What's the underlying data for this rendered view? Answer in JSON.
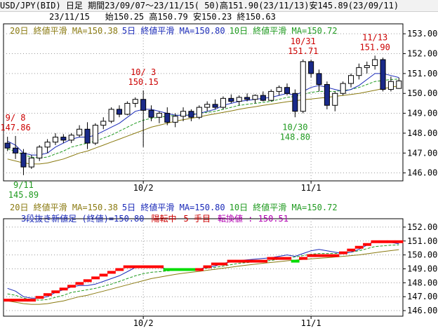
{
  "header": {
    "line1": "USD/JPY(BID) 日足 期間23/09/07～23/11/15( 50)高151.90(23/11/13)安145.89(23/09/11)",
    "date": "23/11/15",
    "ohlc": "始150.25 高150.79 安150.23 終150.63"
  },
  "panel1": {
    "legend": [
      {
        "label": "20日 終値平滑 MA=150.38",
        "color": "#8a7a10"
      },
      {
        "label": "5日 終値平滑 MA=150.80",
        "color": "#1a2ab8"
      },
      {
        "label": "10日 終値平滑 MA=150.72",
        "color": "#1f9a1f"
      }
    ],
    "annotations": [
      {
        "date_label": "9/ 8",
        "value": "147.86",
        "color": "#cc0000"
      },
      {
        "date_label": "9/11",
        "value": "145.89",
        "color": "#1f9a1f"
      },
      {
        "date_label": "10/ 3",
        "value": "150.15",
        "color": "#cc0000"
      },
      {
        "date_label": "10/31",
        "value": "151.71",
        "color": "#cc0000"
      },
      {
        "date_label": "10/30",
        "value": "148.80",
        "color": "#1f9a1f"
      },
      {
        "date_label": "11/13",
        "value": "151.90",
        "color": "#cc0000"
      }
    ]
  },
  "panel2": {
    "legend": [
      {
        "label": "20日 終値平滑 MA=150.38",
        "color": "#8a7a10"
      },
      {
        "label": "5日 終値平滑 MA=150.80",
        "color": "#1a2ab8"
      },
      {
        "label": "10日 終値平滑 MA=150.72",
        "color": "#1f9a1f"
      }
    ],
    "status": [
      {
        "text": "3段抜き新値足 (終値)=150.80",
        "color": "#1a2ab8"
      },
      {
        "text": "陽転中",
        "color": "#cc0000"
      },
      {
        "text": "5 手目",
        "color": "#cc0000"
      },
      {
        "text": "転換値 : 150.51",
        "color": "#b000b0"
      }
    ]
  },
  "colors": {
    "up": "#ff0000",
    "down": "#00dd00",
    "candle_down": "#1a2a8a",
    "ma20": "#8a7a10",
    "ma5": "#1a2ab8",
    "ma10": "#1f9a1f",
    "grid": "#9a9a9a"
  },
  "chart_data": [
    {
      "type": "candlestick",
      "title": "",
      "x_ticks": [
        "10/2",
        "11/1"
      ],
      "y_ticks": [
        "146.00",
        "147.00",
        "148.00",
        "149.00",
        "150.00",
        "151.00",
        "152.00",
        "153.00"
      ],
      "ylim": [
        145.6,
        153.5
      ],
      "grid": true,
      "candles": [
        [
          147.5,
          147.82,
          147.1,
          147.25
        ],
        [
          147.25,
          147.86,
          146.7,
          147.0
        ],
        [
          147.0,
          147.2,
          145.89,
          146.3
        ],
        [
          146.3,
          146.9,
          146.2,
          146.75
        ],
        [
          146.75,
          147.4,
          146.6,
          147.3
        ],
        [
          147.3,
          147.7,
          147.0,
          147.55
        ],
        [
          147.55,
          148.0,
          147.4,
          147.8
        ],
        [
          147.8,
          147.95,
          147.5,
          147.65
        ],
        [
          147.65,
          148.0,
          147.5,
          147.9
        ],
        [
          147.9,
          148.4,
          147.8,
          148.2
        ],
        [
          148.2,
          148.55,
          147.2,
          147.5
        ],
        [
          147.5,
          148.5,
          147.4,
          148.4
        ],
        [
          148.4,
          148.8,
          148.2,
          148.6
        ],
        [
          148.6,
          149.3,
          148.5,
          149.2
        ],
        [
          149.2,
          149.4,
          148.8,
          148.95
        ],
        [
          148.95,
          149.6,
          148.9,
          149.5
        ],
        [
          149.5,
          149.8,
          149.3,
          149.7
        ],
        [
          149.7,
          150.15,
          147.3,
          149.15
        ],
        [
          149.15,
          149.4,
          148.6,
          148.8
        ],
        [
          148.8,
          149.1,
          148.5,
          149.0
        ],
        [
          149.0,
          149.3,
          148.4,
          148.55
        ],
        [
          148.55,
          149.0,
          148.3,
          148.85
        ],
        [
          148.85,
          149.3,
          148.6,
          149.1
        ],
        [
          149.1,
          149.2,
          148.6,
          148.8
        ],
        [
          148.8,
          149.4,
          148.7,
          149.3
        ],
        [
          149.3,
          149.6,
          149.1,
          149.45
        ],
        [
          149.45,
          149.7,
          149.2,
          149.3
        ],
        [
          149.3,
          149.85,
          149.2,
          149.75
        ],
        [
          149.75,
          149.95,
          149.5,
          149.6
        ],
        [
          149.6,
          149.9,
          149.4,
          149.8
        ],
        [
          149.8,
          150.0,
          149.6,
          149.7
        ],
        [
          149.7,
          149.95,
          149.5,
          149.9
        ],
        [
          149.9,
          150.1,
          149.6,
          149.65
        ],
        [
          149.65,
          150.2,
          149.6,
          150.1
        ],
        [
          150.1,
          150.4,
          149.9,
          150.3
        ],
        [
          150.3,
          150.5,
          149.9,
          150.0
        ],
        [
          150.0,
          150.2,
          148.8,
          149.1
        ],
        [
          149.1,
          151.71,
          149.0,
          151.6
        ],
        [
          151.6,
          151.7,
          150.8,
          151.0
        ],
        [
          151.0,
          151.2,
          150.1,
          150.45
        ],
        [
          150.45,
          150.6,
          149.2,
          149.4
        ],
        [
          149.4,
          150.1,
          149.1,
          150.0
        ],
        [
          150.0,
          150.6,
          149.9,
          150.5
        ],
        [
          150.5,
          151.0,
          150.3,
          150.9
        ],
        [
          150.9,
          151.5,
          150.7,
          151.3
        ],
        [
          151.3,
          151.6,
          151.0,
          151.4
        ],
        [
          151.4,
          151.9,
          151.2,
          151.7
        ],
        [
          151.7,
          151.8,
          150.1,
          150.2
        ],
        [
          150.2,
          150.85,
          150.1,
          150.6
        ],
        [
          150.25,
          150.79,
          150.23,
          150.63
        ]
      ],
      "ma5": [
        147.6,
        147.4,
        147.0,
        146.9,
        146.9,
        147.0,
        147.3,
        147.5,
        147.7,
        147.8,
        147.8,
        147.9,
        148.1,
        148.3,
        148.5,
        148.8,
        149.1,
        149.2,
        149.2,
        149.1,
        149.0,
        148.9,
        148.9,
        148.9,
        149.0,
        149.1,
        149.2,
        149.4,
        149.5,
        149.6,
        149.65,
        149.7,
        149.75,
        149.8,
        149.9,
        150.0,
        149.9,
        150.1,
        150.3,
        150.4,
        150.3,
        150.2,
        150.1,
        150.2,
        150.4,
        150.7,
        151.0,
        151.0,
        150.9,
        150.8
      ],
      "ma10": [
        147.2,
        147.1,
        146.9,
        146.8,
        146.75,
        146.8,
        146.95,
        147.1,
        147.3,
        147.4,
        147.5,
        147.6,
        147.75,
        147.9,
        148.1,
        148.3,
        148.5,
        148.65,
        148.75,
        148.8,
        148.85,
        148.9,
        148.92,
        148.95,
        149.0,
        149.05,
        149.1,
        149.2,
        149.3,
        149.4,
        149.45,
        149.5,
        149.55,
        149.6,
        149.7,
        149.8,
        149.85,
        149.95,
        150.05,
        150.1,
        150.1,
        150.1,
        150.15,
        150.2,
        150.3,
        150.45,
        150.6,
        150.65,
        150.7,
        150.72
      ],
      "ma20": [
        146.7,
        146.6,
        146.5,
        146.45,
        146.45,
        146.5,
        146.6,
        146.7,
        146.85,
        147.0,
        147.1,
        147.25,
        147.4,
        147.55,
        147.7,
        147.85,
        148.0,
        148.15,
        148.3,
        148.4,
        148.5,
        148.6,
        148.68,
        148.75,
        148.82,
        148.9,
        148.97,
        149.05,
        149.12,
        149.2,
        149.27,
        149.33,
        149.4,
        149.46,
        149.52,
        149.58,
        149.63,
        149.68,
        149.72,
        149.76,
        149.8,
        149.85,
        149.9,
        149.95,
        150.0,
        150.08,
        150.16,
        150.24,
        150.31,
        150.38
      ]
    },
    {
      "type": "bar",
      "title": "",
      "x_ticks": [
        "10/2",
        "11/1"
      ],
      "y_ticks": [
        "146.00",
        "147.00",
        "148.00",
        "149.00",
        "150.00",
        "151.00",
        "152.00"
      ],
      "ylim": [
        145.6,
        152.6
      ],
      "grid": true,
      "blocks": [
        {
          "i": 0,
          "low": 146.65,
          "high": 146.85,
          "dir": "up"
        },
        {
          "i": 1,
          "low": 146.65,
          "high": 146.85,
          "dir": "up"
        },
        {
          "i": 2,
          "low": 146.65,
          "high": 146.85,
          "dir": "up"
        },
        {
          "i": 3,
          "low": 146.65,
          "high": 146.85,
          "dir": "up"
        },
        {
          "i": 4,
          "low": 146.85,
          "high": 147.05,
          "dir": "up"
        },
        {
          "i": 5,
          "low": 147.05,
          "high": 147.25,
          "dir": "up"
        },
        {
          "i": 6,
          "low": 147.25,
          "high": 147.45,
          "dir": "up"
        },
        {
          "i": 7,
          "low": 147.45,
          "high": 147.65,
          "dir": "up"
        },
        {
          "i": 8,
          "low": 147.65,
          "high": 147.85,
          "dir": "up"
        },
        {
          "i": 9,
          "low": 147.85,
          "high": 148.05,
          "dir": "up"
        },
        {
          "i": 10,
          "low": 148.05,
          "high": 148.25,
          "dir": "up"
        },
        {
          "i": 11,
          "low": 148.25,
          "high": 148.45,
          "dir": "up"
        },
        {
          "i": 12,
          "low": 148.45,
          "high": 148.65,
          "dir": "up"
        },
        {
          "i": 13,
          "low": 148.65,
          "high": 148.85,
          "dir": "up"
        },
        {
          "i": 14,
          "low": 148.85,
          "high": 149.05,
          "dir": "up"
        },
        {
          "i": 15,
          "low": 149.05,
          "high": 149.25,
          "dir": "up"
        },
        {
          "i": 16,
          "low": 149.05,
          "high": 149.25,
          "dir": "up"
        },
        {
          "i": 17,
          "low": 149.05,
          "high": 149.25,
          "dir": "up"
        },
        {
          "i": 18,
          "low": 149.05,
          "high": 149.25,
          "dir": "up"
        },
        {
          "i": 19,
          "low": 149.05,
          "high": 149.25,
          "dir": "up"
        },
        {
          "i": 20,
          "low": 148.85,
          "high": 149.05,
          "dir": "down"
        },
        {
          "i": 21,
          "low": 148.85,
          "high": 149.05,
          "dir": "down"
        },
        {
          "i": 22,
          "low": 148.85,
          "high": 149.05,
          "dir": "down"
        },
        {
          "i": 23,
          "low": 148.85,
          "high": 149.05,
          "dir": "down"
        },
        {
          "i": 24,
          "low": 148.85,
          "high": 149.05,
          "dir": "up"
        },
        {
          "i": 25,
          "low": 149.05,
          "high": 149.25,
          "dir": "up"
        },
        {
          "i": 26,
          "low": 149.25,
          "high": 149.45,
          "dir": "up"
        },
        {
          "i": 27,
          "low": 149.25,
          "high": 149.45,
          "dir": "up"
        },
        {
          "i": 28,
          "low": 149.45,
          "high": 149.65,
          "dir": "up"
        },
        {
          "i": 29,
          "low": 149.45,
          "high": 149.65,
          "dir": "up"
        },
        {
          "i": 30,
          "low": 149.45,
          "high": 149.65,
          "dir": "up"
        },
        {
          "i": 31,
          "low": 149.45,
          "high": 149.65,
          "dir": "up"
        },
        {
          "i": 32,
          "low": 149.45,
          "high": 149.65,
          "dir": "up"
        },
        {
          "i": 33,
          "low": 149.65,
          "high": 149.85,
          "dir": "up"
        },
        {
          "i": 34,
          "low": 149.65,
          "high": 149.85,
          "dir": "up"
        },
        {
          "i": 35,
          "low": 149.65,
          "high": 149.85,
          "dir": "up"
        },
        {
          "i": 36,
          "low": 149.45,
          "high": 149.65,
          "dir": "down"
        },
        {
          "i": 37,
          "low": 149.65,
          "high": 149.85,
          "dir": "up"
        },
        {
          "i": 38,
          "low": 149.85,
          "high": 150.05,
          "dir": "up"
        },
        {
          "i": 39,
          "low": 149.85,
          "high": 150.05,
          "dir": "up"
        },
        {
          "i": 40,
          "low": 149.85,
          "high": 150.05,
          "dir": "up"
        },
        {
          "i": 41,
          "low": 149.85,
          "high": 150.05,
          "dir": "up"
        },
        {
          "i": 42,
          "low": 150.05,
          "high": 150.25,
          "dir": "up"
        },
        {
          "i": 43,
          "low": 150.25,
          "high": 150.45,
          "dir": "up"
        },
        {
          "i": 44,
          "low": 150.45,
          "high": 150.65,
          "dir": "up"
        },
        {
          "i": 45,
          "low": 150.65,
          "high": 150.85,
          "dir": "up"
        },
        {
          "i": 46,
          "low": 150.85,
          "high": 151.05,
          "dir": "up"
        },
        {
          "i": 47,
          "low": 150.85,
          "high": 151.05,
          "dir": "up"
        },
        {
          "i": 48,
          "low": 150.85,
          "high": 151.05,
          "dir": "up"
        },
        {
          "i": 49,
          "low": 150.85,
          "high": 151.05,
          "dir": "up"
        }
      ]
    }
  ]
}
